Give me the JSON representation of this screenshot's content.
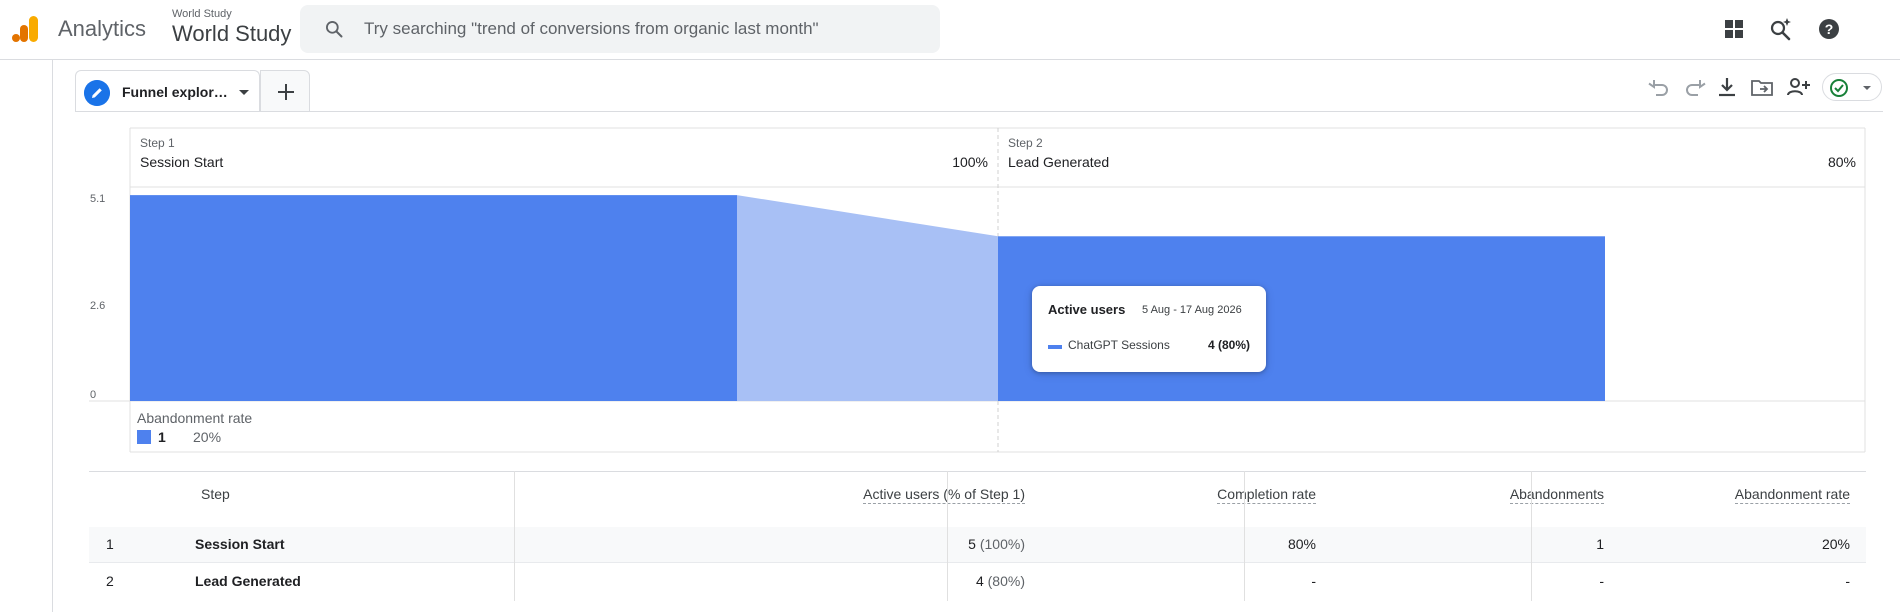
{
  "header": {
    "app_title": "Analytics",
    "account_small": "World Study",
    "account_name": "World Study",
    "search_placeholder": "Try searching \"trend of conversions from organic last month\"",
    "icons": [
      "apps-grid-icon",
      "search-insights-icon",
      "help-icon"
    ]
  },
  "tabs": {
    "active_label": "Funnel explor…",
    "add_label": "+"
  },
  "toolbar": {
    "icons": [
      "undo-icon",
      "redo-icon",
      "download-icon",
      "move-to-folder-icon",
      "share-icon",
      "status-check-icon"
    ]
  },
  "funnel": {
    "steps": [
      {
        "head": "Step 1",
        "name": "Session Start",
        "pct": "100%"
      },
      {
        "head": "Step 2",
        "name": "Lead Generated",
        "pct": "80%"
      }
    ],
    "y_ticks": [
      "5.1",
      "2.6",
      "0"
    ],
    "abandonment_label": "Abandonment rate",
    "abandonment_count": "1",
    "abandonment_rate": "20%",
    "colors": {
      "bar": "#4e81ee",
      "dropoff": "#a8c0f5"
    }
  },
  "chart_data": {
    "type": "bar",
    "categories": [
      "Session Start",
      "Lead Generated"
    ],
    "values": [
      5,
      4
    ],
    "ylim": [
      0,
      5.1
    ],
    "yticks": [
      0,
      2.6,
      5.1
    ]
  },
  "tooltip": {
    "title": "Active users",
    "range": "5 Aug - 17 Aug 2026",
    "series": "ChatGPT Sessions",
    "value": "4 (80%)"
  },
  "table": {
    "headers": [
      "Step",
      "Active users (% of Step 1)",
      "Completion rate",
      "Abandonments",
      "Abandonment rate"
    ],
    "rows": [
      {
        "idx": "1",
        "step": "Session Start",
        "active": "5",
        "active_pct": "(100%)",
        "completion": "80%",
        "abandonments": "1",
        "abandon_rate": "20%"
      },
      {
        "idx": "2",
        "step": "Lead Generated",
        "active": "4",
        "active_pct": "(80%)",
        "completion": "-",
        "abandonments": "-",
        "abandon_rate": "-"
      }
    ]
  }
}
